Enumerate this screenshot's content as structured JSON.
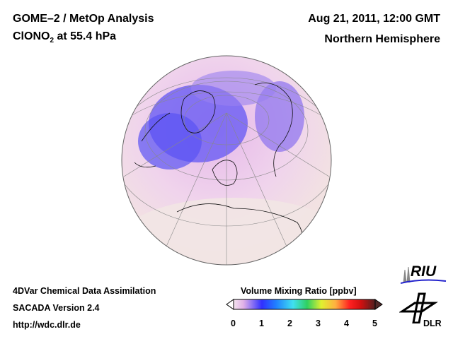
{
  "header": {
    "title": "GOME–2 / MetOp Analysis",
    "species_prefix": "ClONO",
    "species_sub": "2",
    "species_suffix": " at 55.4 hPa",
    "date": "Aug 21, 2011, 12:00 GMT",
    "region": "Northern Hemisphere"
  },
  "footer": {
    "line1": "4DVar Chemical Data Assimilation",
    "line2": "SACADA Version 2.4",
    "line3": "http://wdc.dlr.de"
  },
  "colorbar": {
    "title": "Volume Mixing Ratio [ppbv]",
    "ticks": [
      "0",
      "1",
      "2",
      "3",
      "4",
      "5"
    ],
    "range": [
      0,
      5
    ],
    "colors": [
      "#f4e4ee",
      "#e0b0e8",
      "#3030ff",
      "#2080ff",
      "#40e0f0",
      "#30d060",
      "#e0f030",
      "#ffb040",
      "#ff2020",
      "#d01010",
      "#502020"
    ]
  },
  "logos": {
    "riu": "RIU",
    "dlr": "DLR"
  }
}
